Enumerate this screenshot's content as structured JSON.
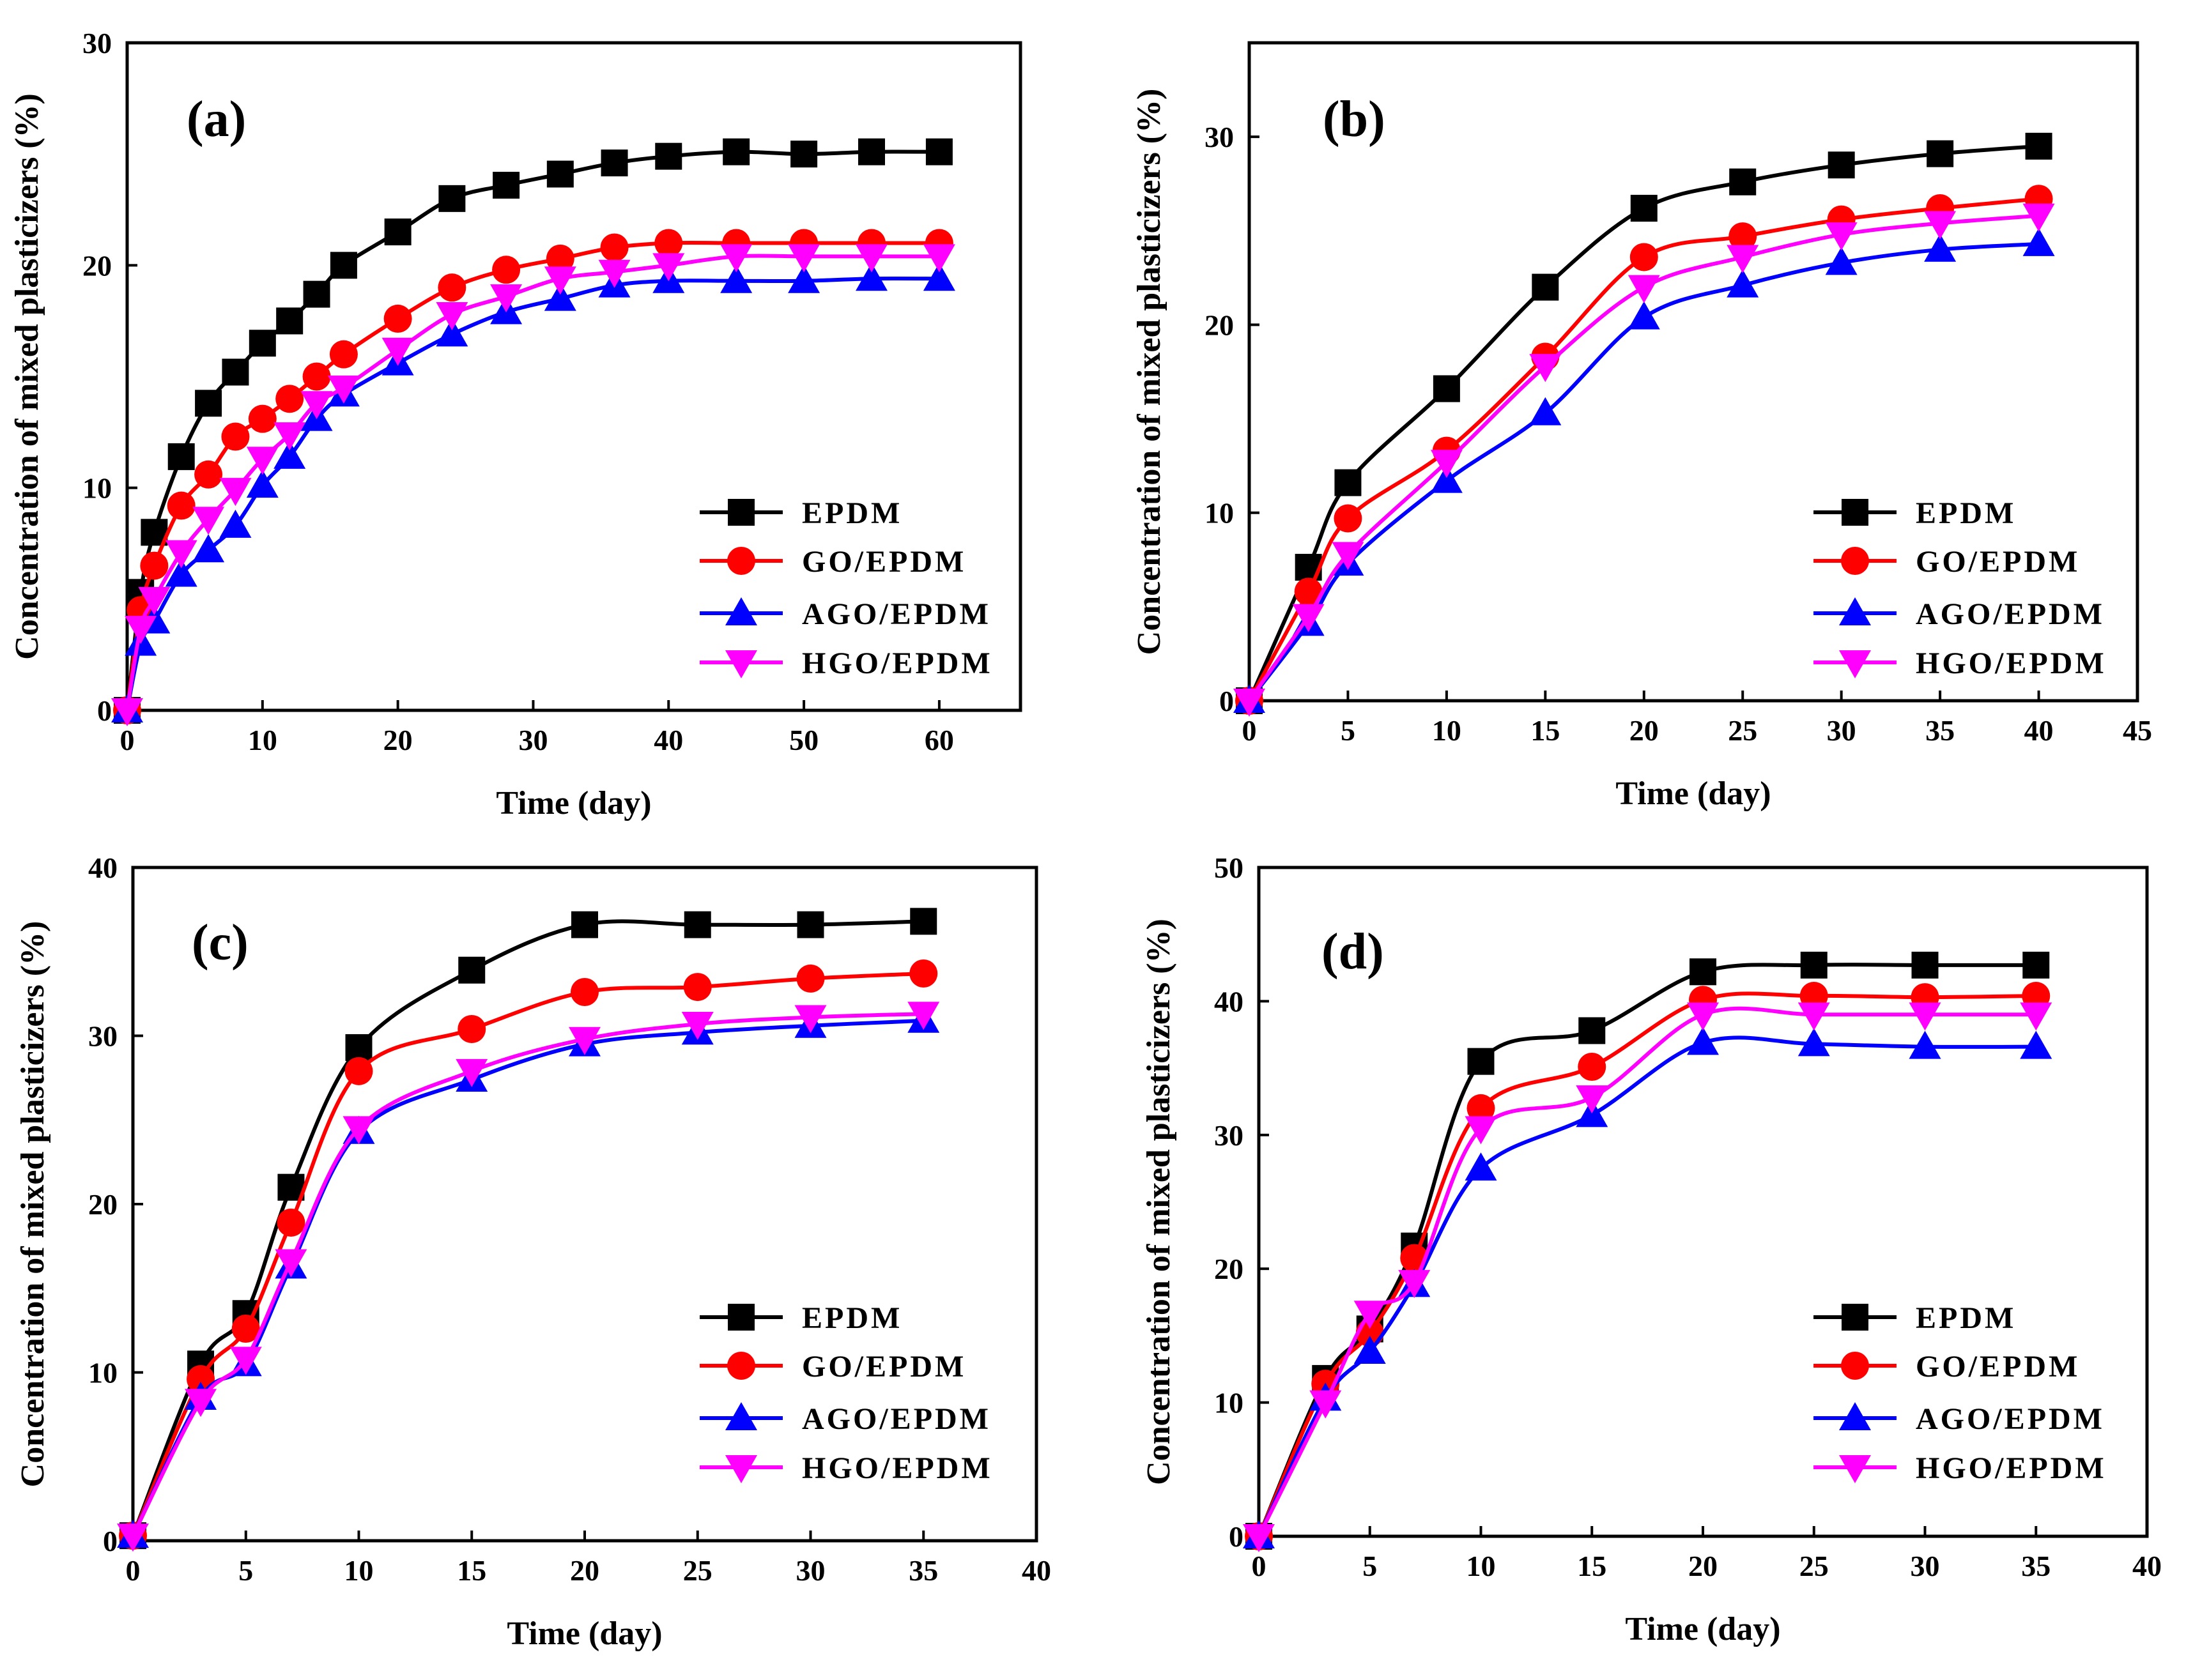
{
  "colors": {
    "EPDM": "#000000",
    "GO/EPDM": "#ff0000",
    "AGO/EPDM": "#0000ff",
    "HGO/EPDM": "#ff00ff"
  },
  "markers": {
    "EPDM": "square",
    "GO/EPDM": "circle",
    "AGO/EPDM": "triangle-up",
    "HGO/EPDM": "triangle-down"
  },
  "chart_data": [
    {
      "type": "line",
      "panel_label": "(a)",
      "xlabel": "Time (day)",
      "ylabel": "Concentration of mixed plasticizers (%)",
      "xlim": [
        0,
        66
      ],
      "ylim": [
        0,
        30
      ],
      "xticks": [
        "0",
        "10",
        "20",
        "30",
        "40",
        "50",
        "60"
      ],
      "yticks": [
        "0",
        "10",
        "20",
        "30"
      ],
      "legend_position": "lower-right",
      "series": [
        {
          "name": "EPDM",
          "x": [
            0,
            1,
            2,
            4,
            6,
            8,
            10,
            12,
            14,
            16,
            20,
            24,
            28,
            32,
            36,
            40,
            45,
            50,
            55,
            60
          ],
          "y": [
            0,
            5.3,
            8.0,
            11.4,
            13.8,
            15.2,
            16.5,
            17.5,
            18.7,
            20.0,
            21.5,
            23.0,
            23.6,
            24.1,
            24.6,
            24.9,
            25.1,
            25.0,
            25.1,
            25.1
          ]
        },
        {
          "name": "GO/EPDM",
          "x": [
            0,
            1,
            2,
            4,
            6,
            8,
            10,
            12,
            14,
            16,
            20,
            24,
            28,
            32,
            36,
            40,
            45,
            50,
            55,
            60
          ],
          "y": [
            0,
            4.5,
            6.5,
            9.2,
            10.6,
            12.3,
            13.1,
            14.0,
            15.0,
            16.0,
            17.6,
            19.0,
            19.8,
            20.3,
            20.8,
            21.0,
            21.0,
            21.0,
            21.0,
            21.0
          ]
        },
        {
          "name": "AGO/EPDM",
          "x": [
            0,
            1,
            2,
            4,
            6,
            8,
            10,
            12,
            14,
            16,
            20,
            24,
            28,
            32,
            36,
            40,
            45,
            50,
            55,
            60
          ],
          "y": [
            0,
            3.0,
            4.0,
            6.1,
            7.2,
            8.3,
            10.1,
            11.4,
            13.1,
            14.2,
            15.6,
            16.9,
            17.9,
            18.5,
            19.1,
            19.3,
            19.3,
            19.3,
            19.4,
            19.4
          ]
        },
        {
          "name": "HGO/EPDM",
          "x": [
            0,
            1,
            2,
            4,
            6,
            8,
            10,
            12,
            14,
            16,
            20,
            24,
            28,
            32,
            36,
            40,
            45,
            50,
            55,
            60
          ],
          "y": [
            0,
            3.7,
            5.0,
            7.1,
            8.6,
            9.9,
            11.3,
            12.4,
            13.8,
            14.5,
            16.2,
            17.8,
            18.6,
            19.4,
            19.7,
            20.0,
            20.4,
            20.4,
            20.4,
            20.4
          ]
        }
      ]
    },
    {
      "type": "line",
      "panel_label": "(b)",
      "xlabel": "Time (day)",
      "ylabel": "Concentration of mixed plasticizers (%)",
      "xlim": [
        0,
        45
      ],
      "ylim": [
        0,
        35
      ],
      "xticks": [
        "0",
        "5",
        "10",
        "15",
        "20",
        "25",
        "30",
        "35",
        "40",
        "45"
      ],
      "yticks": [
        "0",
        "10",
        "20",
        "30"
      ],
      "legend_position": "lower-right",
      "series": [
        {
          "name": "EPDM",
          "x": [
            0,
            3,
            5,
            10,
            15,
            20,
            25,
            30,
            35,
            40
          ],
          "y": [
            0,
            7.1,
            11.6,
            16.6,
            22.0,
            26.2,
            27.6,
            28.5,
            29.1,
            29.5
          ]
        },
        {
          "name": "GO/EPDM",
          "x": [
            0,
            3,
            5,
            10,
            15,
            20,
            25,
            30,
            35,
            40
          ],
          "y": [
            0,
            5.8,
            9.7,
            13.3,
            18.3,
            23.6,
            24.7,
            25.6,
            26.2,
            26.7
          ]
        },
        {
          "name": "AGO/EPDM",
          "x": [
            0,
            3,
            5,
            10,
            15,
            20,
            25,
            30,
            35,
            40
          ],
          "y": [
            0,
            4.1,
            7.3,
            11.7,
            15.3,
            20.4,
            22.1,
            23.3,
            24.0,
            24.3
          ]
        },
        {
          "name": "HGO/EPDM",
          "x": [
            0,
            3,
            5,
            10,
            15,
            20,
            25,
            30,
            35,
            40
          ],
          "y": [
            0,
            4.5,
            7.8,
            12.7,
            17.8,
            22.0,
            23.6,
            24.8,
            25.4,
            25.8
          ]
        }
      ]
    },
    {
      "type": "line",
      "panel_label": "(c)",
      "xlabel": "Time (day)",
      "ylabel": "Concentration of mixed plasticizers (%)",
      "xlim": [
        0,
        40
      ],
      "ylim": [
        0,
        40
      ],
      "xticks": [
        "0",
        "5",
        "10",
        "15",
        "20",
        "25",
        "30",
        "35",
        "40"
      ],
      "yticks": [
        "0",
        "10",
        "20",
        "30",
        "40"
      ],
      "legend_position": "lower-right",
      "series": [
        {
          "name": "EPDM",
          "x": [
            0,
            3,
            5,
            7,
            10,
            15,
            20,
            25,
            30,
            35
          ],
          "y": [
            0.3,
            10.5,
            13.5,
            21.0,
            29.3,
            33.9,
            36.6,
            36.6,
            36.6,
            36.8
          ]
        },
        {
          "name": "GO/EPDM",
          "x": [
            0,
            3,
            5,
            7,
            10,
            15,
            20,
            25,
            30,
            35
          ],
          "y": [
            0.3,
            9.6,
            12.6,
            18.9,
            27.9,
            30.4,
            32.6,
            32.9,
            33.4,
            33.7
          ]
        },
        {
          "name": "AGO/EPDM",
          "x": [
            0,
            3,
            5,
            7,
            10,
            15,
            20,
            25,
            30,
            35
          ],
          "y": [
            0.3,
            8.5,
            10.5,
            16.3,
            24.3,
            27.4,
            29.5,
            30.2,
            30.6,
            30.9
          ]
        },
        {
          "name": "HGO/EPDM",
          "x": [
            0,
            3,
            5,
            7,
            10,
            15,
            20,
            25,
            30,
            35
          ],
          "y": [
            0.3,
            8.3,
            10.8,
            16.6,
            24.5,
            27.9,
            29.8,
            30.7,
            31.1,
            31.3
          ]
        }
      ]
    },
    {
      "type": "line",
      "panel_label": "(d)",
      "xlabel": "Time (day)",
      "ylabel": "Concentration of mixed plasticizers (%)",
      "xlim": [
        0,
        40
      ],
      "ylim": [
        0,
        50
      ],
      "xticks": [
        "0",
        "5",
        "10",
        "15",
        "20",
        "25",
        "30",
        "35",
        "40"
      ],
      "yticks": [
        "0",
        "10",
        "20",
        "30",
        "40",
        "50"
      ],
      "legend_position": "lower-right",
      "series": [
        {
          "name": "EPDM",
          "x": [
            0,
            3,
            5,
            7,
            10,
            15,
            20,
            25,
            30,
            35
          ],
          "y": [
            0,
            11.8,
            15.5,
            21.7,
            35.5,
            37.8,
            42.2,
            42.7,
            42.7,
            42.7
          ]
        },
        {
          "name": "GO/EPDM",
          "x": [
            0,
            3,
            5,
            7,
            10,
            15,
            20,
            25,
            30,
            35
          ],
          "y": [
            0,
            11.4,
            15.2,
            20.8,
            32.0,
            35.1,
            40.1,
            40.4,
            40.3,
            40.4
          ]
        },
        {
          "name": "AGO/EPDM",
          "x": [
            0,
            3,
            5,
            7,
            10,
            15,
            20,
            25,
            30,
            35
          ],
          "y": [
            0,
            10.3,
            13.8,
            18.8,
            27.5,
            31.5,
            36.9,
            36.8,
            36.6,
            36.6
          ]
        },
        {
          "name": "HGO/EPDM",
          "x": [
            0,
            3,
            5,
            7,
            10,
            15,
            20,
            25,
            30,
            35
          ],
          "y": [
            0,
            10.0,
            16.7,
            19.0,
            30.5,
            32.8,
            39.0,
            39.0,
            39.0,
            39.0
          ]
        }
      ]
    }
  ]
}
